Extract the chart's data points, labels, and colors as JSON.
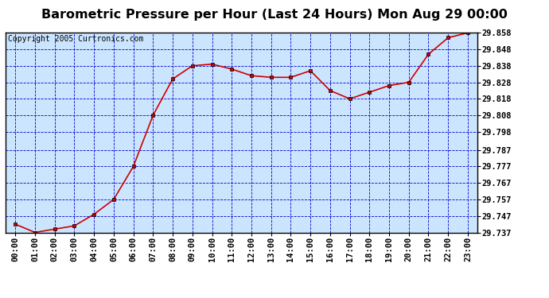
{
  "title": "Barometric Pressure per Hour (Last 24 Hours) Mon Aug 29 00:00",
  "copyright": "Copyright 2005 Curtronics.com",
  "x_labels": [
    "00:00",
    "01:00",
    "02:00",
    "03:00",
    "04:00",
    "05:00",
    "06:00",
    "07:00",
    "08:00",
    "09:00",
    "10:00",
    "11:00",
    "12:00",
    "13:00",
    "14:00",
    "15:00",
    "16:00",
    "17:00",
    "18:00",
    "19:00",
    "20:00",
    "21:00",
    "22:00",
    "23:00"
  ],
  "y_values": [
    29.742,
    29.737,
    29.739,
    29.741,
    29.748,
    29.757,
    29.777,
    29.808,
    29.83,
    29.838,
    29.839,
    29.836,
    29.832,
    29.831,
    29.831,
    29.835,
    29.823,
    29.818,
    29.822,
    29.826,
    29.828,
    29.845,
    29.855,
    29.858
  ],
  "ylim_min": 29.737,
  "ylim_max": 29.858,
  "yticks": [
    29.737,
    29.747,
    29.757,
    29.767,
    29.777,
    29.787,
    29.798,
    29.808,
    29.818,
    29.828,
    29.838,
    29.848,
    29.858
  ],
  "line_color": "#cc0000",
  "marker_color": "#000000",
  "bg_color": "#ffffff",
  "plot_bg_color": "#cce5ff",
  "grid_color": "#0000cc",
  "border_color": "#000000",
  "title_fontsize": 11.5,
  "tick_fontsize": 7.5,
  "copyright_fontsize": 7.0
}
